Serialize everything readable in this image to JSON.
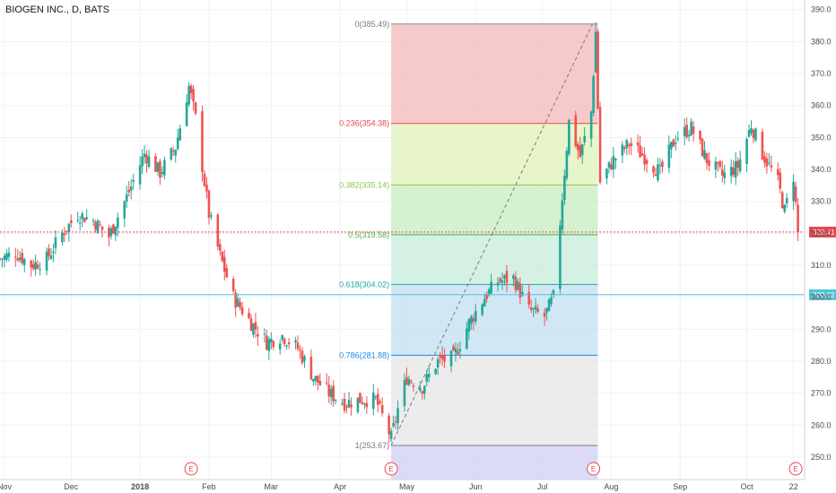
{
  "chart_data": {
    "type": "candlestick",
    "title": "BIOGEN INC., D, BATS",
    "ylim": [
      243,
      393
    ],
    "y_ticks": [
      250,
      260,
      270,
      280,
      290,
      300,
      310,
      320,
      330,
      340,
      350,
      360,
      370,
      380,
      390
    ],
    "x_ticks": [
      {
        "label": "Nov",
        "date": "2017-11-01"
      },
      {
        "label": "Dec",
        "date": "2017-12-01"
      },
      {
        "label": "2018",
        "date": "2018-01-01"
      },
      {
        "label": "Feb",
        "date": "2018-02-01"
      },
      {
        "label": "Mar",
        "date": "2018-03-01"
      },
      {
        "label": "Apr",
        "date": "2018-04-01"
      },
      {
        "label": "May",
        "date": "2018-05-01"
      },
      {
        "label": "Jun",
        "date": "2018-06-01"
      },
      {
        "label": "Jul",
        "date": "2018-07-01"
      },
      {
        "label": "Aug",
        "date": "2018-08-01"
      },
      {
        "label": "Sep",
        "date": "2018-09-01"
      },
      {
        "label": "Oct",
        "date": "2018-10-01"
      },
      {
        "label": "22",
        "date": "2018-10-22"
      }
    ],
    "x_range": [
      "2017-10-30",
      "2018-10-27"
    ],
    "close_series": [
      [
        "2017-10-30",
        312
      ],
      [
        "2017-11-06",
        314
      ],
      [
        "2017-11-13",
        310
      ],
      [
        "2017-11-20",
        312
      ],
      [
        "2017-11-27",
        320
      ],
      [
        "2017-12-04",
        326
      ],
      [
        "2017-12-11",
        324
      ],
      [
        "2017-12-18",
        319
      ],
      [
        "2017-12-27",
        333
      ],
      [
        "2018-01-03",
        345
      ],
      [
        "2018-01-10",
        339
      ],
      [
        "2018-01-17",
        347
      ],
      [
        "2018-01-23",
        366
      ],
      [
        "2018-01-26",
        356
      ],
      [
        "2018-02-01",
        326
      ],
      [
        "2018-02-06",
        313
      ],
      [
        "2018-02-12",
        300
      ],
      [
        "2018-02-20",
        292
      ],
      [
        "2018-02-27",
        286
      ],
      [
        "2018-03-06",
        288
      ],
      [
        "2018-03-13",
        284
      ],
      [
        "2018-03-20",
        275
      ],
      [
        "2018-03-27",
        270
      ],
      [
        "2018-04-03",
        267
      ],
      [
        "2018-04-10",
        268
      ],
      [
        "2018-04-17",
        268
      ],
      [
        "2018-04-24",
        256
      ],
      [
        "2018-04-27",
        265
      ],
      [
        "2018-05-01",
        275
      ],
      [
        "2018-05-08",
        272
      ],
      [
        "2018-05-15",
        280
      ],
      [
        "2018-05-22",
        281
      ],
      [
        "2018-05-29",
        292
      ],
      [
        "2018-06-05",
        300
      ],
      [
        "2018-06-11",
        305
      ],
      [
        "2018-06-18",
        306
      ],
      [
        "2018-06-25",
        296
      ],
      [
        "2018-07-02",
        294
      ],
      [
        "2018-07-06",
        300
      ],
      [
        "2018-07-13",
        355
      ],
      [
        "2018-07-18",
        344
      ],
      [
        "2018-07-23",
        358
      ],
      [
        "2018-07-25",
        383
      ],
      [
        "2018-07-27",
        336
      ],
      [
        "2018-08-02",
        343
      ],
      [
        "2018-08-09",
        348
      ],
      [
        "2018-08-16",
        344
      ],
      [
        "2018-08-23",
        339
      ],
      [
        "2018-08-30",
        350
      ],
      [
        "2018-09-06",
        353
      ],
      [
        "2018-09-13",
        343
      ],
      [
        "2018-09-20",
        338
      ],
      [
        "2018-09-27",
        341
      ],
      [
        "2018-10-03",
        354
      ],
      [
        "2018-10-08",
        345
      ],
      [
        "2018-10-15",
        336
      ],
      [
        "2018-10-18",
        327
      ],
      [
        "2018-10-22",
        338
      ],
      [
        "2018-10-24",
        320
      ]
    ],
    "price_lines": [
      {
        "value": 320.41,
        "label": "320.41",
        "color": "#e5484d"
      },
      {
        "value": 300.82,
        "label": "300.82",
        "color": "#4fc3d9"
      }
    ],
    "earnings_markers": [
      {
        "date": "2018-01-24",
        "label": "E"
      },
      {
        "date": "2018-04-24",
        "label": "E"
      },
      {
        "date": "2018-07-24",
        "label": "E"
      },
      {
        "date": "2018-10-23",
        "label": "E"
      }
    ],
    "fibonacci": {
      "x_start": "2018-04-24",
      "x_end": "2018-07-26",
      "trend_from": 253.67,
      "trend_to": 385.49,
      "levels": [
        {
          "ratio": 0,
          "label": "0(385.49)",
          "price": 385.49,
          "line": "#888888",
          "fill": "#f3b8b8",
          "text": "#787b86"
        },
        {
          "ratio": 0.236,
          "label": "0.236(354.38)",
          "price": 354.38,
          "line": "#e5484d",
          "fill": "#e0f0b8",
          "text": "#e5484d"
        },
        {
          "ratio": 0.382,
          "label": "0.382(335.14)",
          "price": 335.14,
          "line": "#8bc34a",
          "fill": "#c7ecc0",
          "text": "#8bc34a"
        },
        {
          "ratio": 0.5,
          "label": "0.5(319.58)",
          "price": 319.58,
          "line": "#4caf50",
          "fill": "#c5ecd9",
          "text": "#4caf50"
        },
        {
          "ratio": 0.618,
          "label": "0.618(304.02)",
          "price": 304.02,
          "line": "#26a69a",
          "fill": "#c2e0f0",
          "text": "#26a69a"
        },
        {
          "ratio": 0.786,
          "label": "0.786(281.88)",
          "price": 281.88,
          "line": "#1e88e5",
          "fill": "#e6e6e6",
          "text": "#1e88e5"
        },
        {
          "ratio": 1,
          "label": "1(253.67)",
          "price": 253.67,
          "line": "#787b86",
          "fill": "#cfcff5",
          "text": "#787b86"
        }
      ]
    },
    "colors": {
      "up": "#26a69a",
      "down": "#ef5350",
      "grid": "#eef0f3",
      "axis": "#d0d0d0"
    }
  }
}
